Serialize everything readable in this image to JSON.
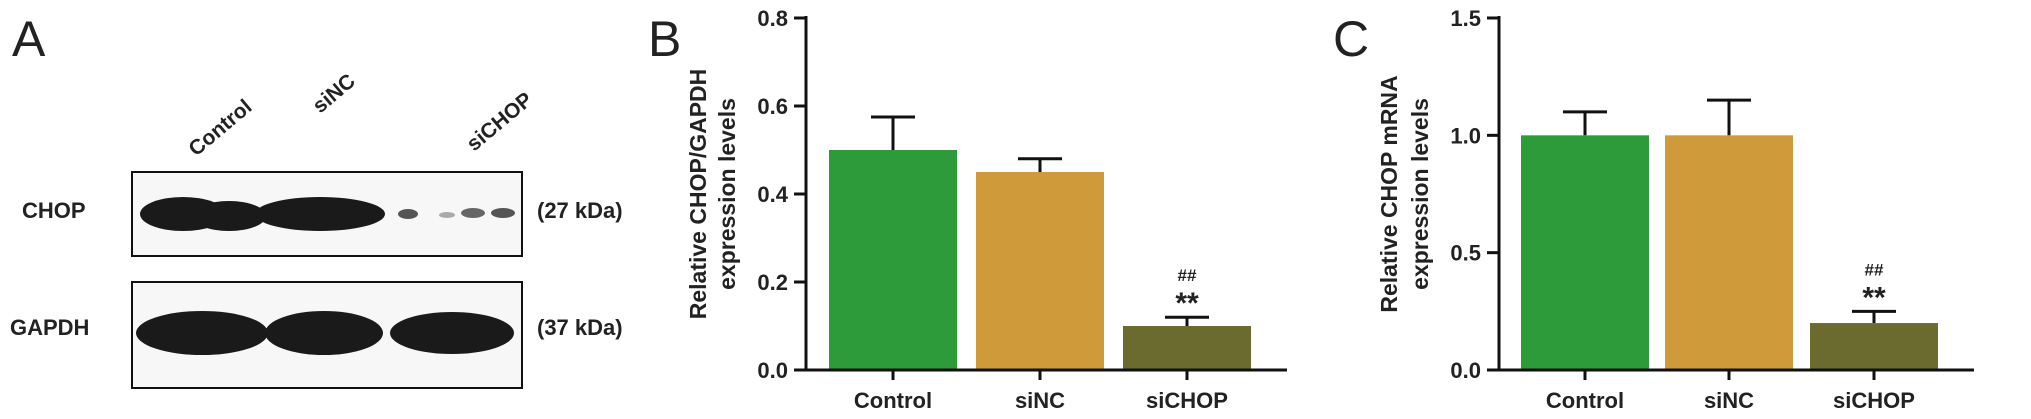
{
  "panels": {
    "a": {
      "letter": "A",
      "lanes": [
        "Control",
        "siNC",
        "siCHOP"
      ],
      "rows": [
        {
          "label": "CHOP",
          "size": "(27 kDa)"
        },
        {
          "label": "GAPDH",
          "size": "(37 kDa)"
        }
      ]
    },
    "b": {
      "letter": "B"
    },
    "c": {
      "letter": "C"
    }
  },
  "chart_data": [
    {
      "type": "bar",
      "panel": "B",
      "categories": [
        "Control",
        "siNC",
        "siCHOP"
      ],
      "values": [
        0.5,
        0.45,
        0.1
      ],
      "errors": [
        0.075,
        0.03,
        0.02
      ],
      "colors": [
        "#2e9b3a",
        "#cf9a3a",
        "#6b6b30"
      ],
      "ylabel_line1": "Relative CHOP/GAPDH",
      "ylabel_line2": "expression levels",
      "ylim": [
        0,
        0.8
      ],
      "yticks": [
        0.0,
        0.2,
        0.4,
        0.6,
        0.8
      ],
      "ytick_labels": [
        "0.0",
        "0.2",
        "0.4",
        "0.6",
        "0.8"
      ],
      "annotations": [
        {
          "category": "siCHOP",
          "lines": [
            "##",
            "**"
          ]
        }
      ]
    },
    {
      "type": "bar",
      "panel": "C",
      "categories": [
        "Control",
        "siNC",
        "siCHOP"
      ],
      "values": [
        1.0,
        1.0,
        0.2
      ],
      "errors": [
        0.1,
        0.15,
        0.05
      ],
      "colors": [
        "#2e9b3a",
        "#cf9a3a",
        "#6b6b30"
      ],
      "ylabel_line1": "Relative CHOP mRNA",
      "ylabel_line2": "expression levels",
      "ylim": [
        0,
        1.5
      ],
      "yticks": [
        0.0,
        0.5,
        1.0,
        1.5
      ],
      "ytick_labels": [
        "0.0",
        "0.5",
        "1.0",
        "1.5"
      ],
      "annotations": [
        {
          "category": "siCHOP",
          "lines": [
            "##",
            "**"
          ]
        }
      ]
    }
  ]
}
